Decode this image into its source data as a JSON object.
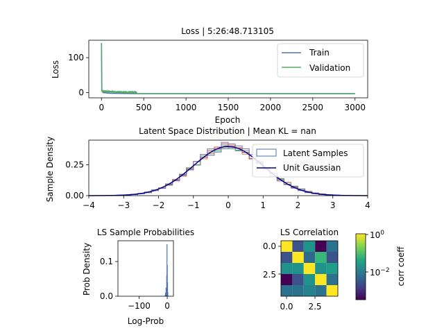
{
  "chart_data": [
    {
      "type": "line",
      "title": "Loss | 5:26:48.713105",
      "xlabel": "Epoch",
      "ylabel": "Loss",
      "xlim": [
        -150,
        3150
      ],
      "ylim": [
        -15,
        150
      ],
      "xticks": [
        0,
        500,
        1000,
        1500,
        2000,
        2500,
        3000
      ],
      "yticks": [
        0,
        100
      ],
      "legend_position": "upper right",
      "series": [
        {
          "name": "Train",
          "color": "#4c72b0",
          "x": [
            0,
            5,
            20,
            100,
            400,
            3000
          ],
          "y": [
            142,
            4,
            0,
            -2,
            -3,
            -3
          ]
        },
        {
          "name": "Validation",
          "color": "#55a868",
          "x": [
            0,
            3,
            10,
            50,
            200,
            400,
            420,
            1000,
            2000,
            3000
          ],
          "y": [
            142,
            6,
            2,
            2,
            0,
            -1,
            -3,
            -3,
            -3,
            -3
          ]
        }
      ]
    },
    {
      "type": "area",
      "title": "Latent Space Distribution | Mean KL = nan",
      "xlabel": "",
      "ylabel": "Sample Density",
      "xlim": [
        -4,
        4
      ],
      "ylim": [
        0,
        0.45
      ],
      "xticks": [
        -4,
        -3,
        -2,
        -1,
        0,
        1,
        2,
        3,
        4
      ],
      "yticks": [
        0.0,
        0.25
      ],
      "ytick_labels": [
        "0.00",
        "0.25"
      ],
      "legend_position": "upper right",
      "legend": [
        "Latent Samples",
        "Unit Gaussian"
      ],
      "histograms": [
        {
          "color": "#4c72b0",
          "seed": 1
        },
        {
          "color": "#dd8452",
          "seed": 2
        },
        {
          "color": "#55a868",
          "seed": 3
        },
        {
          "color": "#c44e52",
          "seed": 4
        },
        {
          "color": "#8172b3",
          "seed": 5
        }
      ],
      "gaussian": {
        "color": "#00008b",
        "mean": 0,
        "std": 1
      }
    },
    {
      "type": "bar",
      "title": "LS Sample Probabilities",
      "xlabel": "Log-Prob",
      "ylabel": "Prob Density",
      "xlim": [
        -175,
        22
      ],
      "ylim": [
        0,
        0.16
      ],
      "xticks": [
        -100,
        0
      ],
      "yticks": [
        0.0,
        0.1
      ],
      "ytick_labels": [
        "0.0",
        "0.1"
      ],
      "color": "#4c72b0",
      "bins": [
        {
          "x": -8,
          "value": 0.003
        },
        {
          "x": -6,
          "value": 0.01
        },
        {
          "x": -4,
          "value": 0.025
        },
        {
          "x": -2,
          "value": 0.06
        },
        {
          "x": -1,
          "value": 0.15
        },
        {
          "x": 0,
          "value": 0.09
        },
        {
          "x": 1,
          "value": 0.04
        },
        {
          "x": 2,
          "value": 0.012
        }
      ]
    },
    {
      "type": "heatmap",
      "title": "LS Correlation",
      "xticks": [
        0.0,
        2.5
      ],
      "yticks": [
        0.0,
        2.5
      ],
      "tick_labels": [
        "0.0",
        "2.5"
      ],
      "colorbar_label": "corr coeff",
      "colorbar_ticks": [
        "10^0",
        "10^-2"
      ],
      "matrix_colors": [
        [
          "#fde725",
          "#3b528b",
          "#21918c",
          "#440154",
          "#2c728e"
        ],
        [
          "#3b528b",
          "#fde725",
          "#31688e",
          "#35b779",
          "#3b528b"
        ],
        [
          "#21918c",
          "#21918c",
          "#fde725",
          "#21918c",
          "#1f9e89"
        ],
        [
          "#440154",
          "#3b528b",
          "#21918c",
          "#fde725",
          "#2c728e"
        ],
        [
          "#2c728e",
          "#2c728e",
          "#26828e",
          "#2c728e",
          "#fde725"
        ]
      ]
    }
  ]
}
